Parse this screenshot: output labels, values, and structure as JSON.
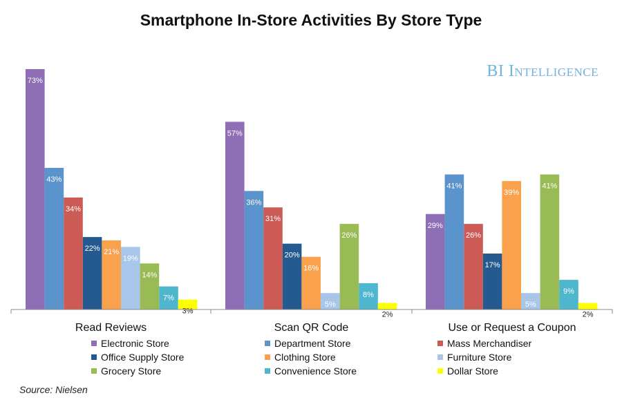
{
  "chart_data": {
    "type": "bar",
    "title": "Smartphone In-Store Activities By Store Type",
    "categories": [
      "Read Reviews",
      "Scan QR Code",
      "Use or Request a Coupon"
    ],
    "series": [
      {
        "name": "Electronic Store",
        "color": "#8e6eb5",
        "values": [
          73,
          57,
          29
        ]
      },
      {
        "name": "Department Store",
        "color": "#5b93cc",
        "values": [
          43,
          36,
          41
        ]
      },
      {
        "name": "Mass Merchandiser",
        "color": "#cc5b56",
        "values": [
          34,
          31,
          26
        ]
      },
      {
        "name": "Office Supply Store",
        "color": "#255a91",
        "values": [
          22,
          20,
          17
        ]
      },
      {
        "name": "Clothing Store",
        "color": "#f9a14c",
        "values": [
          21,
          16,
          39
        ]
      },
      {
        "name": "Furniture Store",
        "color": "#a7c6e9",
        "values": [
          19,
          5,
          5
        ]
      },
      {
        "name": "Grocery Store",
        "color": "#99bb55",
        "values": [
          14,
          26,
          41
        ]
      },
      {
        "name": "Convenience Store",
        "color": "#4eb6cd",
        "values": [
          7,
          8,
          9
        ]
      },
      {
        "name": "Dollar Store",
        "color": "#ffff00",
        "values": [
          3,
          2,
          2
        ]
      }
    ],
    "value_suffix": "%",
    "xlabel": "",
    "ylabel": "",
    "ylim": [
      0,
      73
    ],
    "grid": false,
    "legend": "bottom"
  },
  "brand": "BI Intelligence",
  "source": "Source: Nielsen"
}
